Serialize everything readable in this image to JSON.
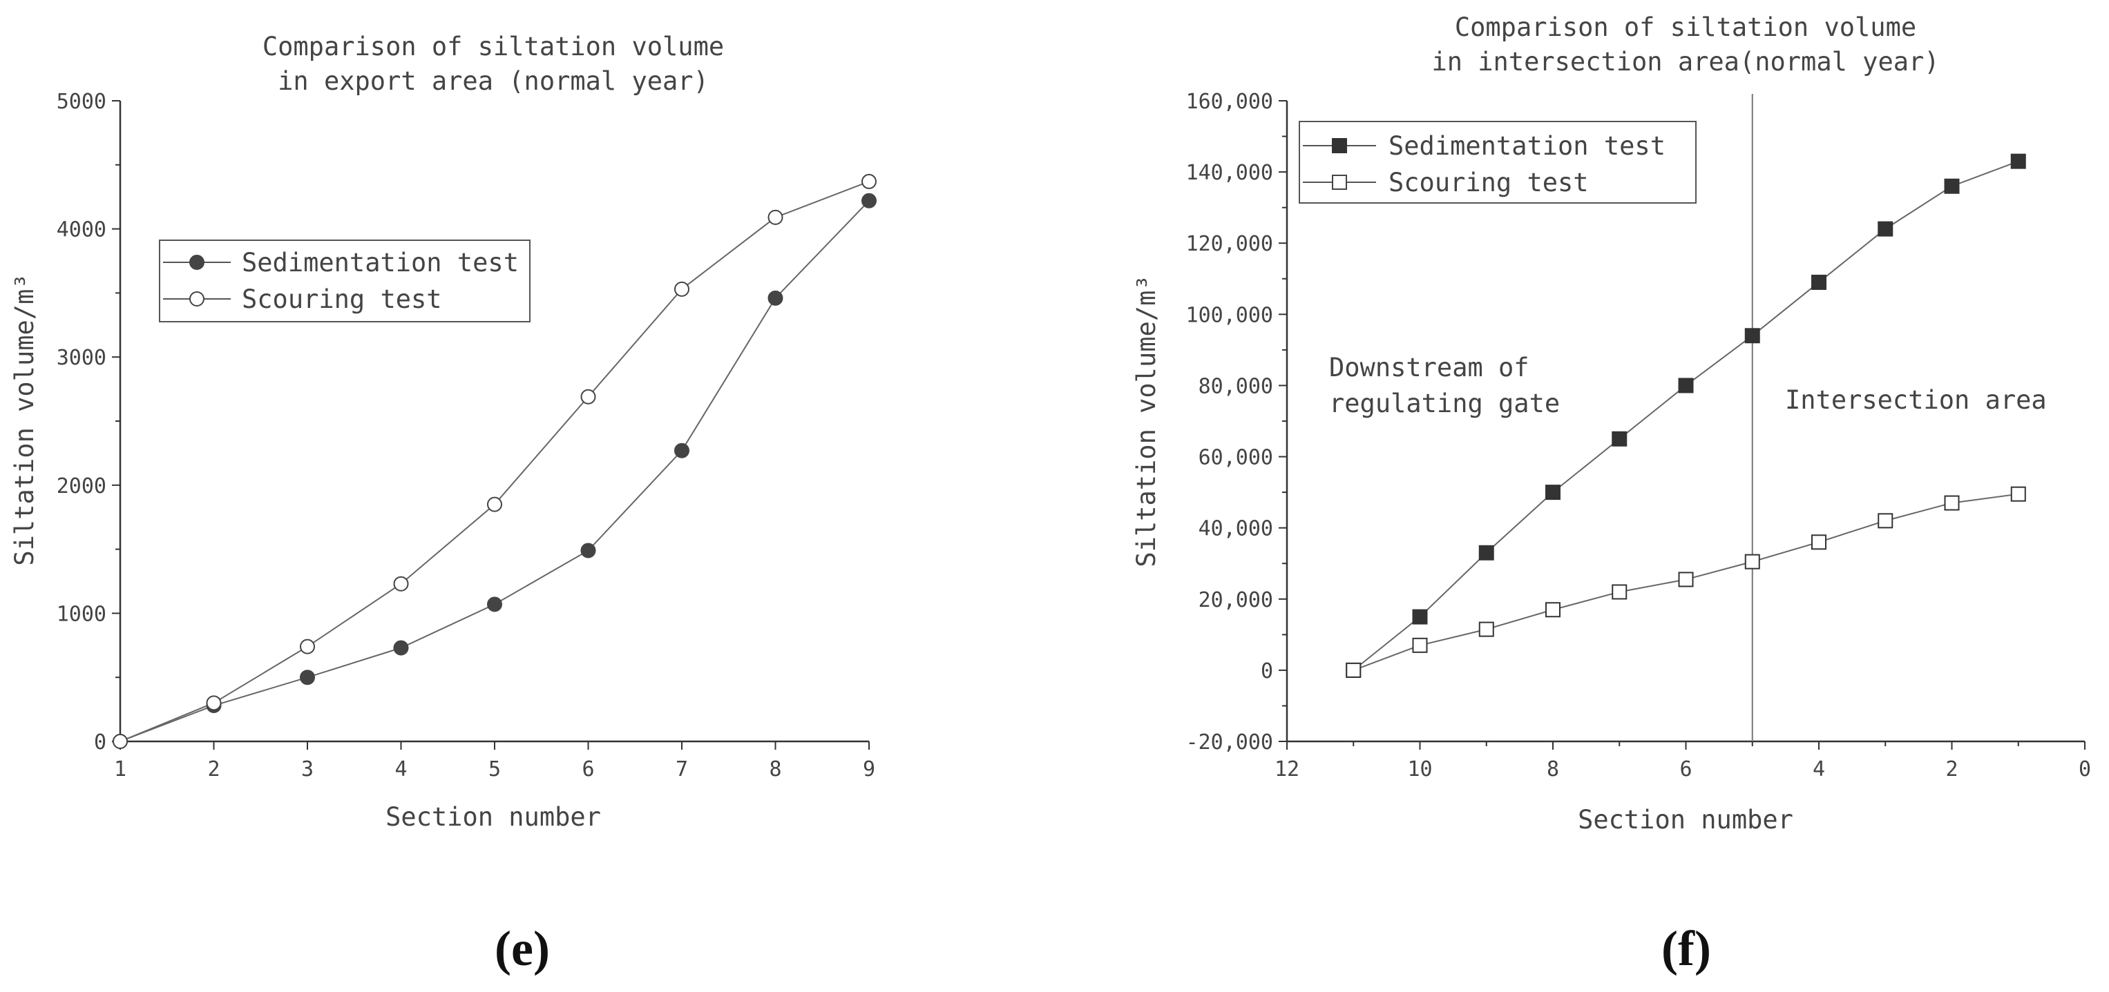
{
  "chart_data": [
    {
      "panel_label": "(e)",
      "type": "line",
      "title_lines": [
        "Comparison of siltation volume",
        "in export area (normal year)"
      ],
      "xlabel": "Section number",
      "ylabel": "Siltation volume/m³",
      "xlim": [
        1,
        9
      ],
      "ylim": [
        0,
        5000
      ],
      "xticks": [
        "1",
        "2",
        "3",
        "4",
        "5",
        "6",
        "7",
        "8",
        "9"
      ],
      "yticks": [
        "0",
        "1000",
        "2000",
        "3000",
        "4000",
        "5000"
      ],
      "legend_position": "upper-left",
      "series": [
        {
          "name": "Sedimentation test",
          "marker": "filled-circle",
          "x": [
            1,
            2,
            3,
            4,
            5,
            6,
            7,
            8,
            9
          ],
          "values": [
            0,
            280,
            500,
            730,
            1070,
            1490,
            2270,
            3460,
            4220
          ]
        },
        {
          "name": "Scouring test",
          "marker": "open-circle",
          "x": [
            1,
            2,
            3,
            4,
            5,
            6,
            7,
            8,
            9
          ],
          "values": [
            0,
            300,
            740,
            1230,
            1850,
            2690,
            3530,
            4090,
            4370
          ]
        }
      ]
    },
    {
      "panel_label": "(f)",
      "type": "line",
      "title_lines": [
        "Comparison of siltation volume",
        "in intersection area(normal year)"
      ],
      "xlabel": "Section number",
      "ylabel": "Siltation volume/m³",
      "xlim": [
        12,
        0
      ],
      "ylim": [
        -20000,
        160000
      ],
      "xticks": [
        "12",
        "10",
        "8",
        "6",
        "4",
        "2",
        "0"
      ],
      "yticks": [
        "-20,000",
        "0",
        "20,000",
        "40,000",
        "60,000",
        "80,000",
        "100,000",
        "120,000",
        "140,000",
        "160,000"
      ],
      "legend_position": "upper-left",
      "divider_x": 5,
      "annotations": [
        {
          "lines": [
            "Downstream of",
            "regulating gate"
          ]
        },
        {
          "lines": [
            "Intersection area"
          ]
        }
      ],
      "series": [
        {
          "name": "Sedimentation test",
          "marker": "filled-square",
          "x": [
            11,
            10,
            9,
            8,
            7,
            6,
            5,
            4,
            3,
            2,
            1
          ],
          "values": [
            0,
            15000,
            33000,
            50000,
            65000,
            80000,
            94000,
            109000,
            124000,
            136000,
            143000
          ]
        },
        {
          "name": "Scouring test",
          "marker": "open-square",
          "x": [
            11,
            10,
            9,
            8,
            7,
            6,
            5,
            4,
            3,
            2,
            1
          ],
          "values": [
            0,
            7000,
            11500,
            17000,
            22000,
            25500,
            30500,
            36000,
            42000,
            47000,
            49500
          ]
        }
      ]
    }
  ]
}
